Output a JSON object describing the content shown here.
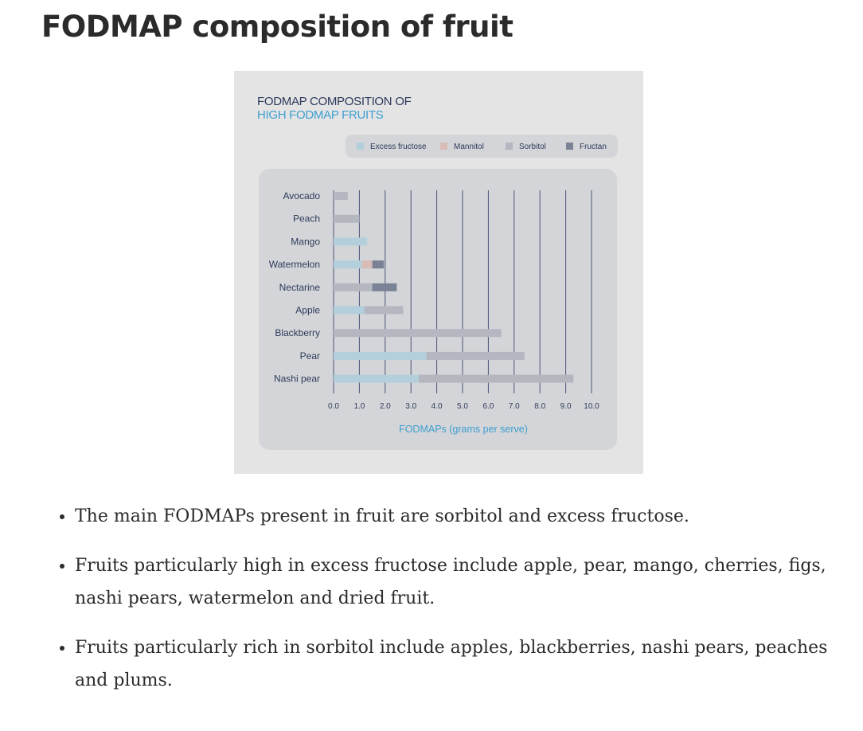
{
  "page": {
    "title": "FODMAP composition of fruit"
  },
  "bullets": [
    "The main FODMAPs present in fruit are sorbitol and excess fructose.",
    "Fruits particularly high in excess fructose include apple, pear, mango, cherries, figs, nashi pears, watermelon and dried fruit.",
    "Fruits particularly rich in sorbitol include apples, blackberries, nashi pears, peaches and plums."
  ],
  "chart_data": {
    "type": "bar",
    "orientation": "horizontal",
    "stacked": true,
    "title_line1": "FODMAP COMPOSITION OF",
    "title_line2": "HIGH FODMAP FRUITS",
    "xlabel": "FODMAPs (grams per serve)",
    "ylabel": "",
    "xlim": [
      0,
      10
    ],
    "xticks": [
      "0.0",
      "1.0",
      "2.0",
      "3.0",
      "4.0",
      "5.0",
      "6.0",
      "7.0",
      "8.0",
      "9.0",
      "10.0"
    ],
    "grid": "vertical",
    "legend_position": "top",
    "categories": [
      "Avocado",
      "Peach",
      "Mango",
      "Watermelon",
      "Nectarine",
      "Apple",
      "Blackberry",
      "Pear",
      "Nashi pear"
    ],
    "series": [
      {
        "name": "Excess fructose",
        "color": "#b3cfdc",
        "values": [
          0,
          0,
          1.3,
          1.1,
          0,
          1.2,
          0,
          3.6,
          3.3
        ]
      },
      {
        "name": "Mannitol",
        "color": "#d9bcb6",
        "values": [
          0,
          0,
          0,
          0.4,
          0,
          0,
          0,
          0,
          0
        ]
      },
      {
        "name": "Sorbitol",
        "color": "#b4b7c0",
        "values": [
          0.55,
          1.0,
          0,
          0,
          1.5,
          1.5,
          6.5,
          3.8,
          6.0
        ]
      },
      {
        "name": "Fructan",
        "color": "#7a8396",
        "values": [
          0,
          0,
          0,
          0.45,
          0.95,
          0,
          0,
          0,
          0
        ]
      }
    ],
    "colors": {
      "title_dark": "#2c3a5a",
      "title_accent": "#3d9fd0",
      "grid": "#4a5577",
      "plot_panel": "#d4d5d8",
      "legend_panel": "#d4d5d8"
    }
  }
}
